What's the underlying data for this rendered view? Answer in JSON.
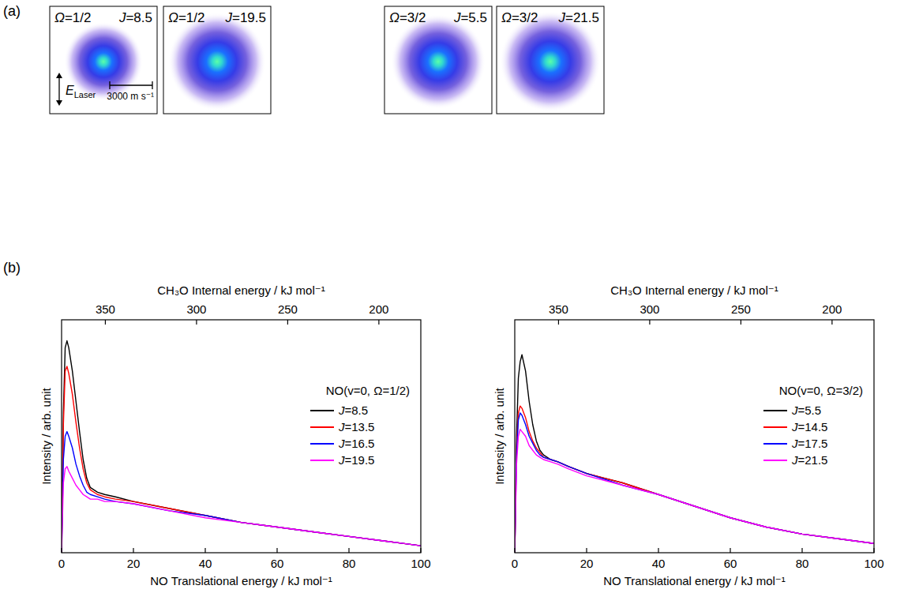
{
  "panel_labels": {
    "a": "(a)",
    "b": "(b)"
  },
  "ion_images": {
    "images": [
      {
        "omega": "Ω=1/2",
        "j": "J=8.5"
      },
      {
        "omega": "Ω=1/2",
        "j": "J=19.5"
      },
      {
        "omega": "Ω=3/2",
        "j": "J=5.5"
      },
      {
        "omega": "Ω=3/2",
        "j": "J=21.5"
      }
    ],
    "polarization": {
      "symbol": "E",
      "subscript": "Laser"
    },
    "scale_bar": {
      "label": "3000 m s⁻¹"
    }
  },
  "chart_data": [
    {
      "type": "line",
      "legend_title": "NO(v=0, Ω=1/2)",
      "xlabel": "NO Translational energy / kJ mol⁻¹",
      "x2label": "CH₃O Internal energy / kJ mol⁻¹",
      "ylabel": "Intensity / arb. unit",
      "xlim": [
        0,
        100
      ],
      "xticks": [
        0,
        20,
        40,
        60,
        80,
        100
      ],
      "x2lim": [
        374,
        177
      ],
      "x2ticks": [
        350,
        300,
        250,
        200
      ],
      "ylim": [
        0,
        1
      ],
      "tick_labels": "x",
      "legend": "upper right",
      "x": [
        0,
        0.5,
        1,
        1.5,
        2,
        3,
        4,
        5,
        6,
        7,
        8,
        10,
        12,
        15,
        20,
        30,
        40,
        50,
        60,
        70,
        80,
        90,
        100
      ],
      "series": [
        {
          "name": "J=8.5",
          "color": "#000000",
          "values": [
            0,
            0.6,
            0.88,
            0.91,
            0.88,
            0.78,
            0.65,
            0.52,
            0.4,
            0.32,
            0.28,
            0.26,
            0.25,
            0.24,
            0.22,
            0.19,
            0.16,
            0.13,
            0.11,
            0.09,
            0.07,
            0.05,
            0.03
          ]
        },
        {
          "name": "J=13.5",
          "color": "#ff0000",
          "values": [
            0,
            0.55,
            0.78,
            0.8,
            0.77,
            0.68,
            0.56,
            0.45,
            0.36,
            0.3,
            0.27,
            0.25,
            0.24,
            0.23,
            0.22,
            0.19,
            0.16,
            0.13,
            0.11,
            0.09,
            0.07,
            0.05,
            0.03
          ]
        },
        {
          "name": "J=16.5",
          "color": "#0000ff",
          "values": [
            0,
            0.4,
            0.5,
            0.52,
            0.5,
            0.45,
            0.38,
            0.33,
            0.29,
            0.26,
            0.25,
            0.24,
            0.23,
            0.22,
            0.21,
            0.18,
            0.16,
            0.13,
            0.11,
            0.09,
            0.07,
            0.05,
            0.03
          ]
        },
        {
          "name": "J=19.5",
          "color": "#ff00ff",
          "values": [
            0,
            0.3,
            0.36,
            0.37,
            0.35,
            0.32,
            0.29,
            0.27,
            0.25,
            0.24,
            0.23,
            0.23,
            0.22,
            0.22,
            0.21,
            0.18,
            0.15,
            0.13,
            0.11,
            0.09,
            0.07,
            0.05,
            0.03
          ]
        }
      ]
    },
    {
      "type": "line",
      "legend_title": "NO(v=0, Ω=3/2)",
      "xlabel": "NO Translational energy / kJ mol⁻¹",
      "x2label": "CH₃O Internal energy / kJ mol⁻¹",
      "ylabel": "Intensity / arb. unit",
      "xlim": [
        0,
        100
      ],
      "xticks": [
        0,
        20,
        40,
        60,
        80,
        100
      ],
      "x2lim": [
        374,
        177
      ],
      "x2ticks": [
        350,
        300,
        250,
        200
      ],
      "ylim": [
        0,
        1
      ],
      "tick_labels": "x",
      "legend": "upper right",
      "x": [
        0,
        0.5,
        1,
        1.5,
        2,
        3,
        4,
        5,
        6,
        7,
        8,
        10,
        12,
        15,
        20,
        30,
        40,
        50,
        60,
        70,
        80,
        90,
        100
      ],
      "series": [
        {
          "name": "J=5.5",
          "color": "#000000",
          "values": [
            0,
            0.5,
            0.75,
            0.82,
            0.85,
            0.78,
            0.65,
            0.55,
            0.48,
            0.44,
            0.42,
            0.4,
            0.39,
            0.37,
            0.34,
            0.3,
            0.25,
            0.2,
            0.15,
            0.11,
            0.08,
            0.06,
            0.04
          ]
        },
        {
          "name": "J=14.5",
          "color": "#ff0000",
          "values": [
            0,
            0.45,
            0.6,
            0.63,
            0.62,
            0.58,
            0.52,
            0.48,
            0.45,
            0.43,
            0.41,
            0.4,
            0.39,
            0.37,
            0.34,
            0.3,
            0.25,
            0.2,
            0.15,
            0.11,
            0.08,
            0.06,
            0.04
          ]
        },
        {
          "name": "J=17.5",
          "color": "#0000ff",
          "values": [
            0,
            0.42,
            0.57,
            0.6,
            0.59,
            0.55,
            0.5,
            0.47,
            0.44,
            0.42,
            0.41,
            0.4,
            0.39,
            0.37,
            0.34,
            0.29,
            0.25,
            0.2,
            0.15,
            0.11,
            0.08,
            0.06,
            0.04
          ]
        },
        {
          "name": "J=21.5",
          "color": "#ff00ff",
          "values": [
            0,
            0.38,
            0.5,
            0.53,
            0.52,
            0.5,
            0.46,
            0.44,
            0.42,
            0.41,
            0.4,
            0.39,
            0.38,
            0.36,
            0.33,
            0.29,
            0.25,
            0.2,
            0.15,
            0.11,
            0.08,
            0.06,
            0.04
          ]
        }
      ]
    }
  ]
}
